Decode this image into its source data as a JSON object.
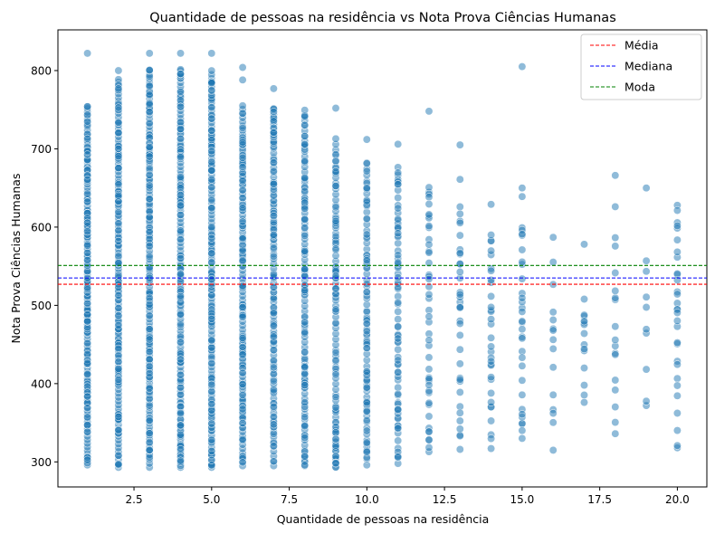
{
  "chart_data": {
    "type": "scatter",
    "title": "Quantidade de pessoas na residência vs Nota Prova Ciências Humanas",
    "xlabel": "Quantidade de pessoas na residência",
    "ylabel": "Nota Prova Ciências Humanas",
    "xlim": [
      0.05,
      20.95
    ],
    "ylim": [
      268,
      852
    ],
    "xticks": [
      2.5,
      5.0,
      7.5,
      10.0,
      12.5,
      15.0,
      17.5,
      20.0
    ],
    "xtick_labels": [
      "2.5",
      "5.0",
      "7.5",
      "10.0",
      "12.5",
      "15.0",
      "17.5",
      "20.0"
    ],
    "yticks": [
      300,
      400,
      500,
      600,
      700,
      800
    ],
    "ytick_labels": [
      "300",
      "400",
      "500",
      "600",
      "700",
      "800"
    ],
    "grid": false,
    "legend_position": "top-right",
    "point_color": "#1f77b4",
    "reference_lines": [
      {
        "name": "Média",
        "y": 527,
        "color": "#ff0000"
      },
      {
        "name": "Mediana",
        "y": 535,
        "color": "#0000ff"
      },
      {
        "name": "Moda",
        "y": 551,
        "color": "#008000"
      }
    ],
    "columns": [
      {
        "x": 1,
        "min": 296,
        "max": 756,
        "extra": [
          822
        ]
      },
      {
        "x": 2,
        "min": 293,
        "max": 790,
        "extra": [
          800
        ]
      },
      {
        "x": 3,
        "min": 293,
        "max": 805,
        "extra": [
          822
        ]
      },
      {
        "x": 4,
        "min": 293,
        "max": 805,
        "extra": [
          822
        ]
      },
      {
        "x": 5,
        "min": 293,
        "max": 805,
        "extra": [
          822
        ]
      },
      {
        "x": 6,
        "min": 295,
        "max": 756,
        "extra": [
          788,
          804
        ]
      },
      {
        "x": 7,
        "min": 295,
        "max": 756,
        "extra": [
          777
        ]
      },
      {
        "x": 8,
        "min": 295,
        "max": 756,
        "extra": []
      },
      {
        "x": 9,
        "min": 293,
        "max": 720,
        "extra": [
          752
        ]
      },
      {
        "x": 10,
        "min": 296,
        "max": 690,
        "extra": [
          712
        ]
      },
      {
        "x": 11,
        "min": 298,
        "max": 686,
        "extra": [
          706
        ]
      },
      {
        "x": 12,
        "min": 313,
        "max": 652,
        "extra": [
          748
        ]
      },
      {
        "x": 13,
        "min": 316,
        "max": 635,
        "extra": [
          661,
          705
        ]
      },
      {
        "x": 14,
        "min": 317,
        "max": 600,
        "extra": [
          629
        ]
      },
      {
        "x": 15,
        "min": 330,
        "max": 608,
        "extra": [
          639,
          650,
          805
        ]
      },
      {
        "x": 16,
        "min": 315,
        "max": 562,
        "extra": [
          587
        ]
      },
      {
        "x": 17,
        "min": 376,
        "max": 530,
        "extra": [
          578
        ]
      },
      {
        "x": 18,
        "min": 336,
        "max": 610,
        "extra": [
          626,
          666
        ]
      },
      {
        "x": 19,
        "min": 372,
        "max": 580,
        "extra": [
          650
        ]
      },
      {
        "x": 20,
        "min": 318,
        "max": 650,
        "extra": []
      }
    ],
    "column_point_counts": [
      200,
      200,
      200,
      200,
      200,
      170,
      150,
      140,
      120,
      100,
      80,
      45,
      35,
      32,
      30,
      14,
      14,
      16,
      9,
      30
    ]
  }
}
